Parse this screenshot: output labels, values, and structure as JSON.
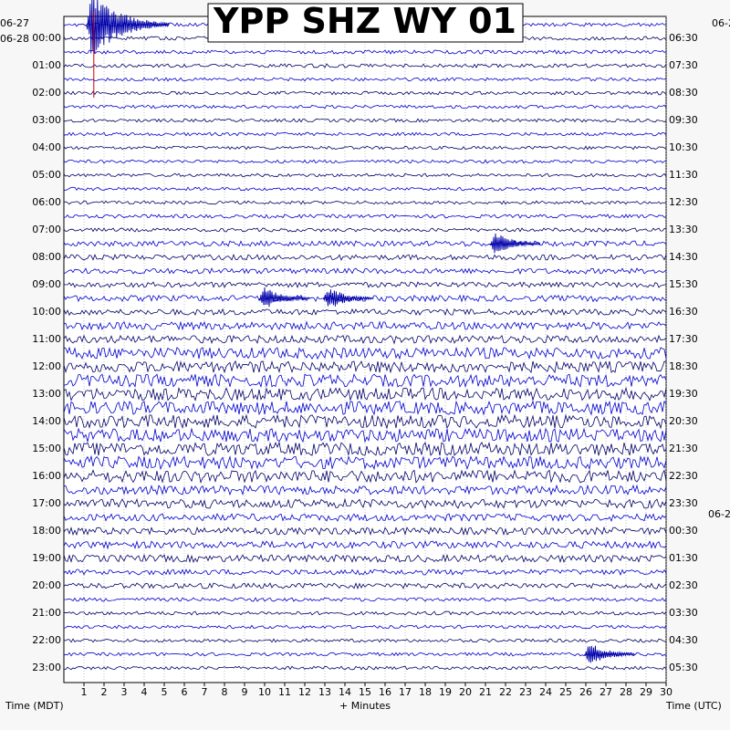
{
  "chart_data": {
    "type": "line",
    "title": "YPP SHZ WY 01",
    "xlabel": "+ Minutes",
    "x_ticks": [
      1,
      2,
      3,
      4,
      5,
      6,
      7,
      8,
      9,
      10,
      11,
      12,
      13,
      14,
      15,
      16,
      17,
      18,
      19,
      20,
      21,
      22,
      23,
      24,
      25,
      26,
      27,
      28,
      29,
      30
    ],
    "xlim": [
      0,
      30
    ],
    "left_axis_label": "Time (MDT)",
    "right_axis_label": "Time (UTC)",
    "left_date_labels": [
      "06-27",
      "06-28"
    ],
    "right_date_labels": [
      "06-2",
      "06-2"
    ],
    "left_hours": [
      "00:00",
      "01:00",
      "02:00",
      "03:00",
      "04:00",
      "05:00",
      "06:00",
      "07:00",
      "08:00",
      "09:00",
      "10:00",
      "11:00",
      "12:00",
      "13:00",
      "14:00",
      "15:00",
      "16:00",
      "17:00",
      "18:00",
      "19:00",
      "20:00",
      "21:00",
      "22:00",
      "23:00"
    ],
    "right_hours": [
      "06:30",
      "07:30",
      "08:30",
      "09:30",
      "10:30",
      "11:30",
      "12:30",
      "13:30",
      "14:30",
      "15:30",
      "16:30",
      "17:30",
      "18:30",
      "19:30",
      "20:30",
      "21:30",
      "22:30",
      "23:30",
      "00:30",
      "01:30",
      "02:30",
      "03:30",
      "04:30",
      "05:30"
    ],
    "trace_colors": [
      "#0000cc",
      "#000066"
    ],
    "event_marker_color": "#cc0000",
    "noise_level_by_hour": [
      0.15,
      0.15,
      0.12,
      0.12,
      0.12,
      0.12,
      0.12,
      0.15,
      0.3,
      0.3,
      0.35,
      0.5,
      0.8,
      0.9,
      0.95,
      0.95,
      0.9,
      0.6,
      0.45,
      0.45,
      0.3,
      0.15,
      0.12,
      0.12
    ],
    "events": [
      {
        "hour": "00:00",
        "minute": 1.4,
        "amplitude": "large"
      },
      {
        "hour": "08:00",
        "minute": 21.5,
        "amplitude": "medium"
      },
      {
        "hour": "10:00",
        "minute": 10.0,
        "amplitude": "medium"
      },
      {
        "hour": "10:00",
        "minute": 13.2,
        "amplitude": "medium"
      },
      {
        "hour": "23:00",
        "minute": 26.2,
        "amplitude": "medium"
      }
    ],
    "grid": true
  }
}
